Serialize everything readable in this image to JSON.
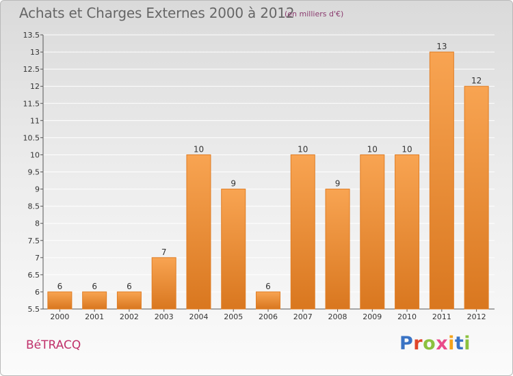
{
  "header": {
    "title": "Achats et Charges Externes 2000 à 2012",
    "subtitle": "(en milliers d'€)"
  },
  "footer": {
    "town": "BéTRACQ",
    "logo_letters": [
      "P",
      "r",
      "o",
      "x",
      "i",
      "t",
      "i"
    ],
    "logo_colors": [
      "#3a73c4",
      "#e0452a",
      "#8cc13f",
      "#e94b8a",
      "#f4a31b",
      "#3a73c4",
      "#8cc13f"
    ]
  },
  "chart_data": {
    "type": "bar",
    "categories": [
      "2000",
      "2001",
      "2002",
      "2003",
      "2004",
      "2005",
      "2006",
      "2007",
      "2008",
      "2009",
      "2010",
      "2011",
      "2012"
    ],
    "values": [
      6,
      6,
      6,
      7,
      10,
      9,
      6,
      10,
      9,
      10,
      10,
      13,
      12
    ],
    "value_labels": [
      "6",
      "6",
      "6",
      "7",
      "10",
      "9",
      "6",
      "10",
      "9",
      "10",
      "10",
      "13",
      "12"
    ],
    "ylim": [
      5.5,
      13.5
    ],
    "yticks": [
      5.5,
      6,
      6.5,
      7,
      7.5,
      8,
      8.5,
      9,
      9.5,
      10,
      10.5,
      11,
      11.5,
      12,
      12.5,
      13,
      13.5
    ],
    "ytick_labels": [
      "5.5",
      "6",
      "6.5",
      "7",
      "7.5",
      "8",
      "8.5",
      "9",
      "9.5",
      "10",
      "10.5",
      "11",
      "11.5",
      "12",
      "12.5",
      "13",
      "13.5"
    ],
    "grid": true,
    "bar_color_top": "#f8a452",
    "bar_color_bottom": "#d9771f",
    "bar_edge": "#e07d24",
    "grid_color": "#ffffff"
  }
}
